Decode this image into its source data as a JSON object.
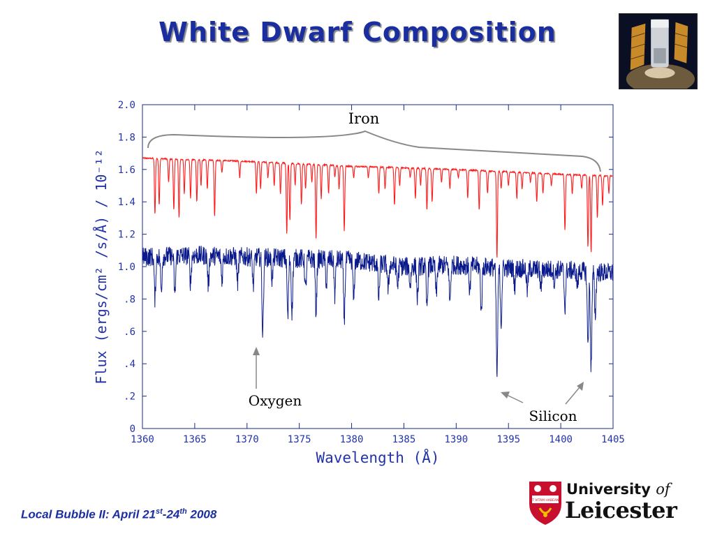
{
  "slide": {
    "title": "White Dwarf Composition",
    "footer": {
      "prefix": "Local Bubble II: April 21",
      "sup1": "st",
      "mid": "-24",
      "sup2": "th",
      "suffix": " 2008"
    },
    "logo": {
      "line1_main": "University",
      "line1_of": "of",
      "line2": "Leicester",
      "shield_motto": "VT VITAM HABEANT"
    },
    "photo_icon": "hubble-telescope-icon"
  },
  "chart_data": {
    "type": "line",
    "xlabel": "Wavelength (Å)",
    "ylabel": "Flux (ergs/cm² /s/Å) / 10⁻¹²",
    "xlim": [
      1360,
      1405
    ],
    "ylim": [
      0,
      2.0
    ],
    "x_ticks": [
      1360,
      1365,
      1370,
      1375,
      1380,
      1385,
      1390,
      1395,
      1400,
      1405
    ],
    "x_tick_labels": [
      "1360",
      "1365",
      "1370",
      "1375",
      "1380",
      "1385",
      "1390",
      "1395",
      "1400",
      "1405"
    ],
    "y_ticks": [
      0,
      0.2,
      0.4,
      0.6,
      0.8,
      1.0,
      1.2,
      1.4,
      1.6,
      1.8,
      2.0
    ],
    "y_tick_labels": [
      "0",
      ".2",
      ".4",
      ".6",
      ".8",
      "1.0",
      "1.2",
      "1.4",
      "1.6",
      "1.8",
      "2.0"
    ],
    "grid": false,
    "series": [
      {
        "color": "#ff1a1a",
        "continuum": [
          [
            1360,
            1.67
          ],
          [
            1370,
            1.65
          ],
          [
            1380,
            1.62
          ],
          [
            1390,
            1.6
          ],
          [
            1400,
            1.57
          ],
          [
            1405,
            1.56
          ]
        ],
        "lines": [
          [
            1361.2,
            1.32
          ],
          [
            1361.6,
            1.38
          ],
          [
            1362.5,
            1.52
          ],
          [
            1363.0,
            1.35
          ],
          [
            1363.5,
            1.3
          ],
          [
            1364.0,
            1.45
          ],
          [
            1364.6,
            1.42
          ],
          [
            1365.2,
            1.4
          ],
          [
            1365.6,
            1.5
          ],
          [
            1366.2,
            1.48
          ],
          [
            1366.9,
            1.31
          ],
          [
            1367.6,
            1.58
          ],
          [
            1369.3,
            1.55
          ],
          [
            1370.9,
            1.45
          ],
          [
            1371.3,
            1.48
          ],
          [
            1372.0,
            1.55
          ],
          [
            1372.6,
            1.5
          ],
          [
            1373.2,
            1.45
          ],
          [
            1373.8,
            1.2
          ],
          [
            1374.1,
            1.28
          ],
          [
            1374.6,
            1.5
          ],
          [
            1375.2,
            1.38
          ],
          [
            1375.6,
            1.48
          ],
          [
            1376.2,
            1.52
          ],
          [
            1376.6,
            1.17
          ],
          [
            1377.1,
            1.42
          ],
          [
            1377.8,
            1.45
          ],
          [
            1378.4,
            1.55
          ],
          [
            1378.8,
            1.48
          ],
          [
            1379.3,
            1.22
          ],
          [
            1380.2,
            1.55
          ],
          [
            1381.6,
            1.55
          ],
          [
            1382.6,
            1.45
          ],
          [
            1383.2,
            1.48
          ],
          [
            1384.1,
            1.38
          ],
          [
            1384.6,
            1.5
          ],
          [
            1385.6,
            1.55
          ],
          [
            1386.1,
            1.42
          ],
          [
            1386.6,
            1.5
          ],
          [
            1387.2,
            1.35
          ],
          [
            1387.7,
            1.4
          ],
          [
            1388.6,
            1.52
          ],
          [
            1389.4,
            1.48
          ],
          [
            1390.2,
            1.55
          ],
          [
            1391.1,
            1.42
          ],
          [
            1392.2,
            1.35
          ],
          [
            1393.0,
            1.45
          ],
          [
            1393.9,
            1.05
          ],
          [
            1394.3,
            1.48
          ],
          [
            1395.0,
            1.5
          ],
          [
            1395.8,
            1.42
          ],
          [
            1396.3,
            1.48
          ],
          [
            1397.1,
            1.52
          ],
          [
            1397.7,
            1.4
          ],
          [
            1398.3,
            1.45
          ],
          [
            1399.1,
            1.5
          ],
          [
            1400.4,
            1.22
          ],
          [
            1401.1,
            1.45
          ],
          [
            1402.0,
            1.48
          ],
          [
            1402.6,
            1.12
          ],
          [
            1402.9,
            1.08
          ],
          [
            1403.5,
            1.3
          ],
          [
            1404.0,
            1.38
          ],
          [
            1404.6,
            1.45
          ]
        ]
      },
      {
        "color": "#0a1a8c",
        "continuum": [
          [
            1360,
            1.06
          ],
          [
            1365,
            1.07
          ],
          [
            1370,
            1.06
          ],
          [
            1375,
            1.05
          ],
          [
            1380,
            1.04
          ],
          [
            1385,
            1.0
          ],
          [
            1390,
            1.01
          ],
          [
            1395,
            0.99
          ],
          [
            1400,
            0.98
          ],
          [
            1405,
            0.96
          ]
        ],
        "lines": [
          [
            1361.2,
            0.8
          ],
          [
            1361.8,
            0.85
          ],
          [
            1363.1,
            0.82
          ],
          [
            1364.6,
            0.9
          ],
          [
            1366.3,
            0.88
          ],
          [
            1367.6,
            0.92
          ],
          [
            1369.1,
            0.9
          ],
          [
            1370.6,
            0.88
          ],
          [
            1371.5,
            0.58
          ],
          [
            1372.4,
            0.92
          ],
          [
            1373.9,
            0.68
          ],
          [
            1374.3,
            0.72
          ],
          [
            1375.6,
            0.85
          ],
          [
            1376.6,
            0.72
          ],
          [
            1377.6,
            0.88
          ],
          [
            1378.4,
            0.82
          ],
          [
            1379.3,
            0.68
          ],
          [
            1380.2,
            0.8
          ],
          [
            1382.6,
            0.8
          ],
          [
            1383.5,
            0.85
          ],
          [
            1384.4,
            0.88
          ],
          [
            1385.6,
            0.88
          ],
          [
            1386.3,
            0.8
          ],
          [
            1387.2,
            0.75
          ],
          [
            1388.1,
            0.82
          ],
          [
            1389.4,
            0.78
          ],
          [
            1391.3,
            0.85
          ],
          [
            1392.4,
            0.72
          ],
          [
            1393.9,
            0.32
          ],
          [
            1394.3,
            0.65
          ],
          [
            1395.6,
            0.88
          ],
          [
            1396.8,
            0.85
          ],
          [
            1398.1,
            0.86
          ],
          [
            1399.4,
            0.9
          ],
          [
            1400.4,
            0.75
          ],
          [
            1401.6,
            0.88
          ],
          [
            1402.6,
            0.52
          ],
          [
            1402.9,
            0.38
          ],
          [
            1403.3,
            0.7
          ]
        ]
      }
    ],
    "annotations": [
      {
        "label": "Iron"
      },
      {
        "label": "Oxygen"
      },
      {
        "label": "Silicon"
      }
    ]
  }
}
